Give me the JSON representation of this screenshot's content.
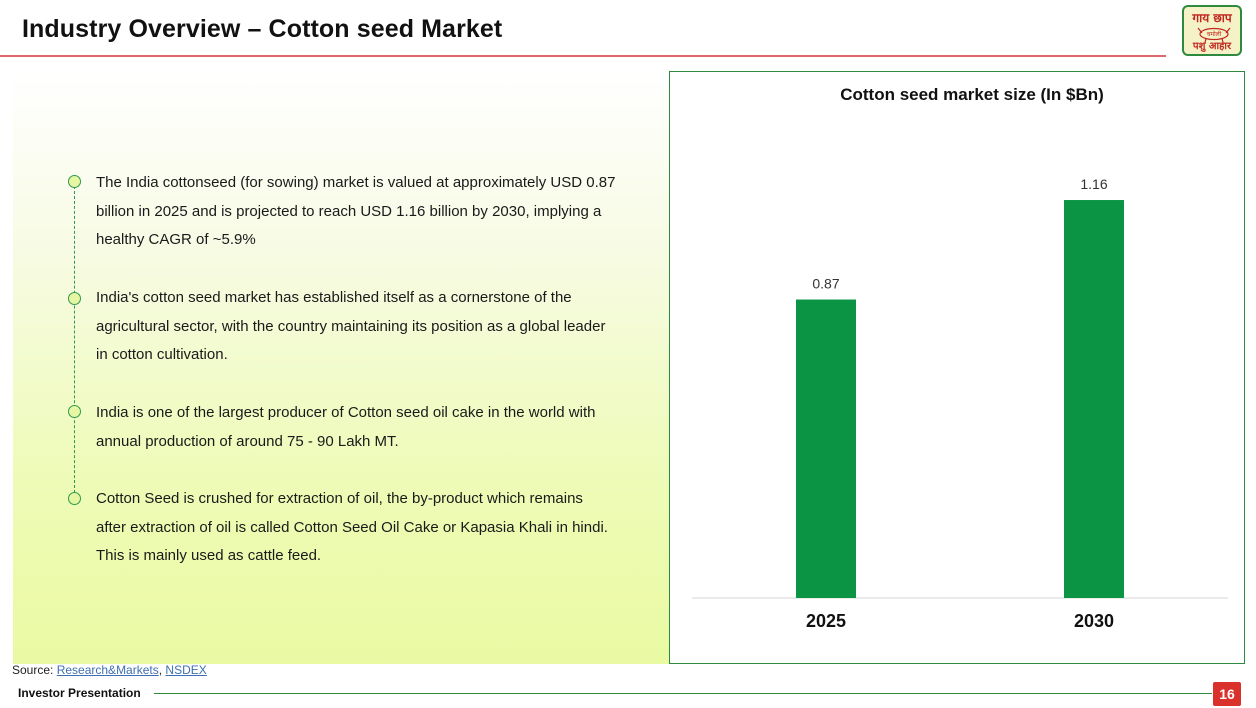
{
  "page": {
    "title": "Industry Overview – Cotton seed Market",
    "page_number": "16",
    "footer_label": "Investor Presentation"
  },
  "logo": {
    "top_text": "गाय छाप",
    "middle_text": "चमोली",
    "bottom_text": "पशु आहार"
  },
  "bullets": [
    "The India cottonseed (for sowing) market is valued at approximately USD 0.87 billion in 2025 and is projected to reach USD 1.16 billion by 2030, implying a healthy CAGR of ~5.9%",
    "India's cotton seed market has established itself as a cornerstone of the agricultural sector, with the country maintaining its position as a global leader in cotton cultivation.",
    "India is one of the largest producer of Cotton seed oil cake in the world with annual production of around 75 - 90 Lakh MT.",
    "Cotton Seed is crushed for extraction of oil, the by-product which remains after extraction of oil is called Cotton Seed Oil Cake or Kapasia Khali in hindi. This is mainly used as cattle feed."
  ],
  "source": {
    "label": "Source: ",
    "link1": "Research&Markets",
    "separator": ", ",
    "link2": "NSDEX"
  },
  "colors": {
    "bar": "#0a9444",
    "accent_rule": "#e0686b",
    "green_border": "#2e8b3e",
    "page_badge": "#d9312b"
  },
  "chart_data": {
    "type": "bar",
    "title": "Cotton seed market size (In $Bn)",
    "categories": [
      "2025",
      "2030"
    ],
    "values": [
      0.87,
      1.16
    ],
    "data_labels": [
      "0.87",
      "1.16"
    ],
    "xlabel": "",
    "ylabel": "",
    "ylim": [
      0,
      1.3
    ],
    "grid": false,
    "legend": "none"
  }
}
